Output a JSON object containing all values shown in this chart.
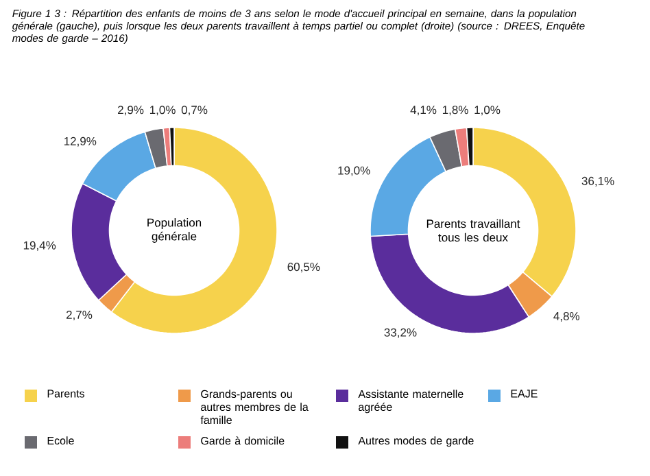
{
  "chart_data": [
    {
      "type": "donut",
      "title": "Figure 1 3 : Répartition des enfants de moins de 3 ans selon le mode d'accueil principal en semaine, dans la population générale (gauche), puis lorsque les deux parents travaillent à temps partiel ou complet (droite) (source : DREES, Enquête modes de garde – 2016)",
      "categories": [
        "Parents",
        "Grands-parents ou autres membres de la famille",
        "Assistante maternelle agréée",
        "EAJE",
        "Ecole",
        "Garde à domicile",
        "Autres modes de garde"
      ],
      "values": [
        60.5,
        2.7,
        19.4,
        12.9,
        2.9,
        1.0,
        0.7
      ],
      "value_labels": [
        "60,5%",
        "2,7%",
        "19,4%",
        "12,9%",
        "2,9%",
        "1,0%",
        "0,7%"
      ],
      "colors": [
        "#f6d24c",
        "#ef9a4a",
        "#5a2d9c",
        "#5aa8e4",
        "#6a6a70",
        "#ec7d7b",
        "#111111"
      ],
      "annotations": [
        "Population générale"
      ],
      "legend": "bottom"
    },
    {
      "type": "donut",
      "categories": [
        null,
        null,
        null,
        null,
        null,
        null,
        null
      ],
      "values": [
        36.1,
        4.8,
        33.2,
        19.0,
        4.1,
        1.8,
        1.0
      ],
      "value_labels": [
        "36,1%",
        "4,8%",
        "33,2%",
        "19,0%",
        "4,1%",
        "1,8%",
        "1,0%"
      ],
      "colors": [
        "#f6d24c",
        "#ef9a4a",
        "#5a2d9c",
        "#5aa8e4",
        "#6a6a70",
        "#ec7d7b",
        "#111111"
      ],
      "annotations": [
        "Parents travaillant tous les deux"
      ],
      "legend": false
    }
  ]
}
